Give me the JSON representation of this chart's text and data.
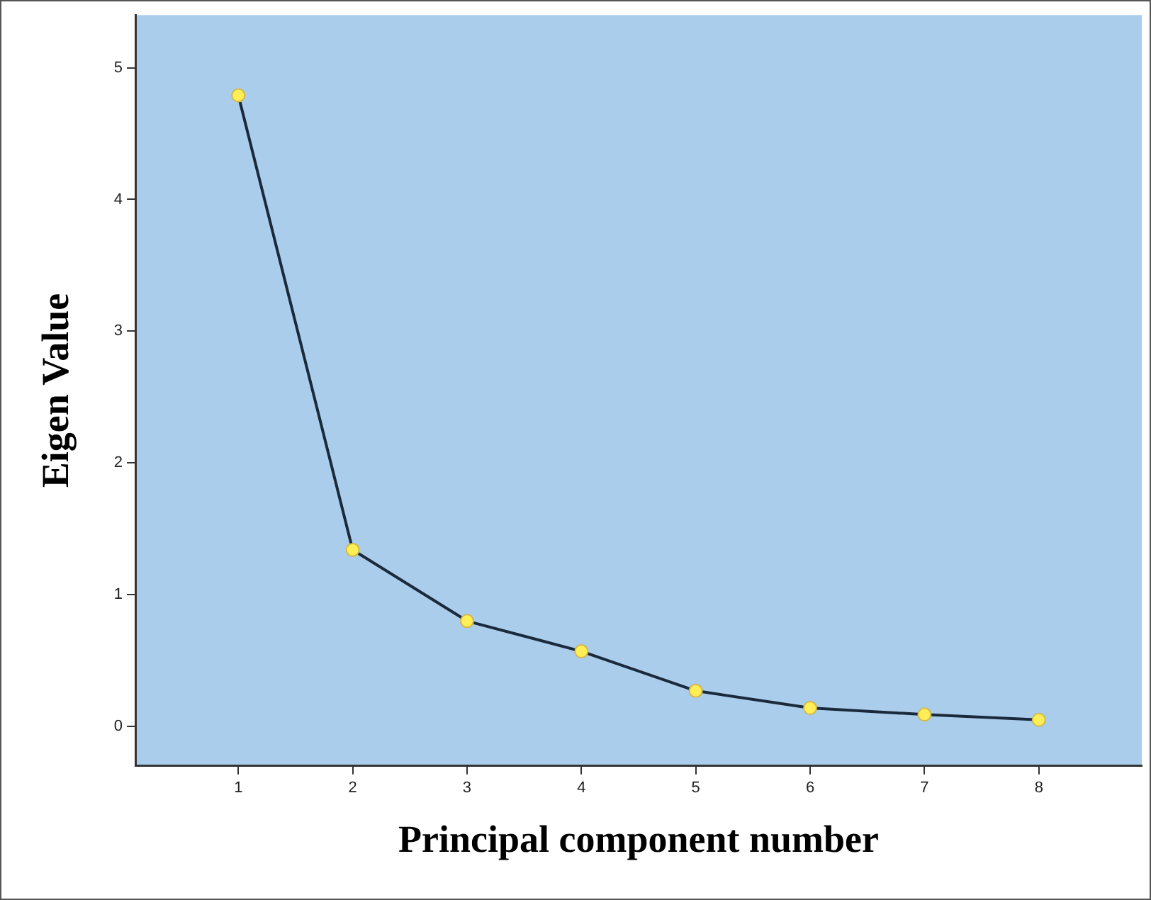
{
  "chart_data": {
    "type": "line",
    "xlabel": "Principal component number",
    "ylabel": "Eigen Value",
    "x": [
      1,
      2,
      3,
      4,
      5,
      6,
      7,
      8
    ],
    "series": [
      {
        "color": "#1a2a3a",
        "values": [
          4.79,
          1.34,
          0.8,
          0.57,
          0.27,
          0.14,
          0.09,
          0.05
        ]
      }
    ],
    "xlim": [
      0.1,
      8.9
    ],
    "xticks": [
      1,
      2,
      3,
      4,
      5,
      6,
      7,
      8
    ],
    "ylim": [
      -0.3,
      5.4
    ],
    "yticks": [
      0,
      1,
      2,
      3,
      4,
      5
    ],
    "grid": false,
    "legend": false,
    "marker": "circle",
    "line_style": "solid"
  }
}
